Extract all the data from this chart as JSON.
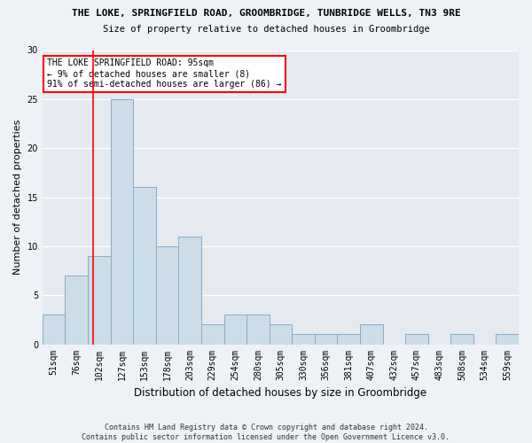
{
  "title1": "THE LOKE, SPRINGFIELD ROAD, GROOMBRIDGE, TUNBRIDGE WELLS, TN3 9RE",
  "title2": "Size of property relative to detached houses in Groombridge",
  "xlabel": "Distribution of detached houses by size in Groombridge",
  "ylabel": "Number of detached properties",
  "bin_labels": [
    "51sqm",
    "76sqm",
    "102sqm",
    "127sqm",
    "153sqm",
    "178sqm",
    "203sqm",
    "229sqm",
    "254sqm",
    "280sqm",
    "305sqm",
    "330sqm",
    "356sqm",
    "381sqm",
    "407sqm",
    "432sqm",
    "457sqm",
    "483sqm",
    "508sqm",
    "534sqm",
    "559sqm"
  ],
  "values": [
    3,
    7,
    9,
    25,
    16,
    10,
    11,
    2,
    3,
    3,
    2,
    1,
    1,
    1,
    2,
    0,
    1,
    0,
    1,
    0,
    1
  ],
  "bar_color": "#ccdde8",
  "bar_edge_color": "#88aac8",
  "bar_width": 1.0,
  "red_line_x": 1.75,
  "ylim": [
    0,
    30
  ],
  "yticks": [
    0,
    5,
    10,
    15,
    20,
    25,
    30
  ],
  "annotation_title": "THE LOKE SPRINGFIELD ROAD: 95sqm",
  "annotation_line1": "← 9% of detached houses are smaller (8)",
  "annotation_line2": "91% of semi-detached houses are larger (86) →",
  "footnote1": "Contains HM Land Registry data © Crown copyright and database right 2024.",
  "footnote2": "Contains public sector information licensed under the Open Government Licence v3.0.",
  "background_color": "#eef2f6",
  "plot_bg_color": "#e4eaf0"
}
